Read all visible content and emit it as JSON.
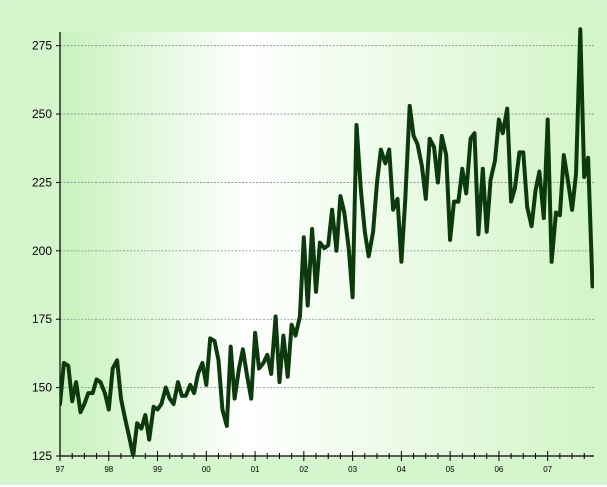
{
  "colors": {
    "plot_gradient_start": "#c8f2bd",
    "plot_gradient_mid": "#ffffff",
    "plot_gradient_end": "#d2f5c8",
    "line": "#0d3a0d",
    "axis": "#000000",
    "grid": "#8a8a8a"
  },
  "chart_data": {
    "type": "line",
    "title": "",
    "xlabel": "",
    "ylabel": "",
    "ylim": [
      125,
      280
    ],
    "xlim": [
      1997.0,
      2007.95
    ],
    "y_ticks": [
      125,
      150,
      175,
      200,
      225,
      250,
      275
    ],
    "y_tick_labels": [
      "125",
      "150",
      "175",
      "200",
      "225",
      "250",
      "275"
    ],
    "x_tick_labels": [
      {
        "label": "97",
        "x": 1997.0
      },
      {
        "label": "98",
        "x": 1998.0
      },
      {
        "label": "99",
        "x": 1999.0
      },
      {
        "label": "00",
        "x": 2000.0
      },
      {
        "label": "01",
        "x": 2001.0
      },
      {
        "label": "02",
        "x": 2002.0
      },
      {
        "label": "03",
        "x": 2003.0
      },
      {
        "label": "04",
        "x": 2004.0
      },
      {
        "label": "05",
        "x": 2005.0
      },
      {
        "label": "06",
        "x": 2006.0
      },
      {
        "label": "07",
        "x": 2007.0
      }
    ],
    "grid": "horizontal dashed",
    "legend": "none",
    "series": [
      {
        "values": [
          [
            1997.0,
            144
          ],
          [
            1997.08,
            159
          ],
          [
            1997.17,
            158
          ],
          [
            1997.25,
            145
          ],
          [
            1997.33,
            152
          ],
          [
            1997.42,
            141
          ],
          [
            1997.5,
            144
          ],
          [
            1997.58,
            148
          ],
          [
            1997.67,
            148
          ],
          [
            1997.75,
            153
          ],
          [
            1997.83,
            152
          ],
          [
            1997.92,
            148
          ],
          [
            1998.0,
            142
          ],
          [
            1998.08,
            157
          ],
          [
            1998.17,
            160
          ],
          [
            1998.25,
            146
          ],
          [
            1998.33,
            139
          ],
          [
            1998.42,
            132
          ],
          [
            1998.5,
            125
          ],
          [
            1998.58,
            137
          ],
          [
            1998.67,
            135
          ],
          [
            1998.75,
            140
          ],
          [
            1998.83,
            131
          ],
          [
            1998.92,
            143
          ],
          [
            1999.0,
            142
          ],
          [
            1999.08,
            144
          ],
          [
            1999.17,
            150
          ],
          [
            1999.25,
            146
          ],
          [
            1999.33,
            144
          ],
          [
            1999.42,
            152
          ],
          [
            1999.5,
            147
          ],
          [
            1999.58,
            147
          ],
          [
            1999.67,
            151
          ],
          [
            1999.75,
            148
          ],
          [
            1999.83,
            155
          ],
          [
            1999.92,
            159
          ],
          [
            2000.0,
            151
          ],
          [
            2000.08,
            168
          ],
          [
            2000.17,
            167
          ],
          [
            2000.25,
            160
          ],
          [
            2000.33,
            142
          ],
          [
            2000.42,
            136
          ],
          [
            2000.5,
            165
          ],
          [
            2000.58,
            146
          ],
          [
            2000.67,
            157
          ],
          [
            2000.75,
            164
          ],
          [
            2000.83,
            155
          ],
          [
            2000.92,
            146
          ],
          [
            2001.0,
            170
          ],
          [
            2001.08,
            157
          ],
          [
            2001.17,
            159
          ],
          [
            2001.25,
            162
          ],
          [
            2001.33,
            155
          ],
          [
            2001.42,
            176
          ],
          [
            2001.5,
            152
          ],
          [
            2001.58,
            169
          ],
          [
            2001.67,
            154
          ],
          [
            2001.75,
            173
          ],
          [
            2001.83,
            169
          ],
          [
            2001.92,
            176
          ],
          [
            2002.0,
            205
          ],
          [
            2002.08,
            180
          ],
          [
            2002.17,
            208
          ],
          [
            2002.25,
            185
          ],
          [
            2002.33,
            203
          ],
          [
            2002.42,
            201
          ],
          [
            2002.5,
            202
          ],
          [
            2002.58,
            215
          ],
          [
            2002.67,
            200
          ],
          [
            2002.75,
            220
          ],
          [
            2002.83,
            214
          ],
          [
            2002.92,
            201
          ],
          [
            2003.0,
            183
          ],
          [
            2003.08,
            246
          ],
          [
            2003.17,
            222
          ],
          [
            2003.25,
            207
          ],
          [
            2003.33,
            198
          ],
          [
            2003.42,
            207
          ],
          [
            2003.5,
            225
          ],
          [
            2003.58,
            237
          ],
          [
            2003.67,
            232
          ],
          [
            2003.75,
            237
          ],
          [
            2003.83,
            215
          ],
          [
            2003.92,
            219
          ],
          [
            2004.0,
            196
          ],
          [
            2004.08,
            219
          ],
          [
            2004.17,
            253
          ],
          [
            2004.25,
            242
          ],
          [
            2004.33,
            239
          ],
          [
            2004.42,
            231
          ],
          [
            2004.5,
            219
          ],
          [
            2004.58,
            241
          ],
          [
            2004.67,
            238
          ],
          [
            2004.75,
            225
          ],
          [
            2004.83,
            242
          ],
          [
            2004.92,
            235
          ],
          [
            2005.0,
            204
          ],
          [
            2005.08,
            218
          ],
          [
            2005.17,
            218
          ],
          [
            2005.25,
            230
          ],
          [
            2005.33,
            221
          ],
          [
            2005.42,
            241
          ],
          [
            2005.5,
            243
          ],
          [
            2005.58,
            206
          ],
          [
            2005.67,
            230
          ],
          [
            2005.75,
            207
          ],
          [
            2005.83,
            226
          ],
          [
            2005.92,
            233
          ],
          [
            2006.0,
            248
          ],
          [
            2006.08,
            243
          ],
          [
            2006.17,
            252
          ],
          [
            2006.25,
            218
          ],
          [
            2006.33,
            223
          ],
          [
            2006.42,
            236
          ],
          [
            2006.5,
            236
          ],
          [
            2006.58,
            216
          ],
          [
            2006.67,
            209
          ],
          [
            2006.75,
            222
          ],
          [
            2006.83,
            229
          ],
          [
            2006.92,
            212
          ],
          [
            2007.0,
            248
          ],
          [
            2007.08,
            196
          ],
          [
            2007.17,
            214
          ],
          [
            2007.25,
            213
          ],
          [
            2007.33,
            235
          ],
          [
            2007.42,
            225
          ],
          [
            2007.5,
            215
          ],
          [
            2007.58,
            228
          ],
          [
            2007.67,
            281
          ],
          [
            2007.75,
            227
          ],
          [
            2007.83,
            234
          ],
          [
            2007.92,
            187
          ]
        ]
      }
    ]
  }
}
